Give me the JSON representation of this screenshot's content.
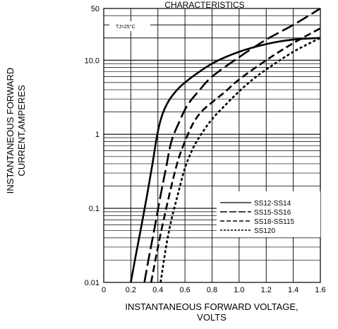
{
  "chart_data": {
    "type": "line",
    "title": "CHARACTERISTICS",
    "annotation": "TJ=25°C",
    "xlabel": "INSTANTANEOUS FORWARD VOLTAGE, VOLTS",
    "xlabel_lines": [
      "INSTANTANEOUS FORWARD VOLTAGE,",
      "VOLTS"
    ],
    "ylabel": "INSTANTANEOUS FORWARD CURRENT,AMPERES",
    "ylabel_lines": [
      "INSTANTANEOUS FORWARD",
      "CURRENT,AMPERES"
    ],
    "xlim": [
      0,
      1.6
    ],
    "ylim": [
      0.01,
      50
    ],
    "yscale": "log",
    "grid": true,
    "legend_position": "lower-right",
    "x_ticks": [
      "0",
      "0.2",
      "0.4",
      "0.6",
      "0.8",
      "1.0",
      "1.2",
      "1.4",
      "1.6"
    ],
    "x_tick_values": [
      0,
      0.2,
      0.4,
      0.6,
      0.8,
      1.0,
      1.2,
      1.4,
      1.6
    ],
    "y_ticks": [
      "0.01",
      "0.1",
      "1",
      "10.0",
      "50"
    ],
    "y_tick_values": [
      0.01,
      0.1,
      1,
      10,
      50
    ],
    "series": [
      {
        "name": "SS12-SS14",
        "dash": "solid",
        "x": [
          0.2,
          0.24,
          0.28,
          0.32,
          0.36,
          0.4,
          0.44,
          0.5,
          0.6,
          0.8,
          1.0,
          1.2,
          1.4,
          1.6
        ],
        "y": [
          0.01,
          0.025,
          0.06,
          0.15,
          0.4,
          1.1,
          2.0,
          3.2,
          5.0,
          9.0,
          13.0,
          16.5,
          19.0,
          20.0
        ]
      },
      {
        "name": "SS15-SS16",
        "dash": "long-dash",
        "x": [
          0.3,
          0.34,
          0.38,
          0.42,
          0.46,
          0.5,
          0.56,
          0.62,
          0.7,
          0.8,
          1.0,
          1.2,
          1.4,
          1.6
        ],
        "y": [
          0.01,
          0.025,
          0.06,
          0.15,
          0.35,
          0.8,
          1.5,
          2.5,
          3.8,
          6.0,
          11.0,
          19.0,
          30.0,
          50.0
        ]
      },
      {
        "name": "SS18-SS115",
        "dash": "medium-dash",
        "x": [
          0.35,
          0.4,
          0.45,
          0.5,
          0.55,
          0.6,
          0.66,
          0.72,
          0.8,
          0.9,
          1.0,
          1.2,
          1.4,
          1.6
        ],
        "y": [
          0.01,
          0.03,
          0.08,
          0.2,
          0.45,
          0.8,
          1.4,
          2.0,
          2.7,
          3.8,
          5.5,
          10.0,
          17.0,
          27.0
        ]
      },
      {
        "name": "SS120",
        "dash": "short-dash",
        "x": [
          0.42,
          0.46,
          0.5,
          0.55,
          0.6,
          0.66,
          0.72,
          0.8,
          0.9,
          1.0,
          1.1,
          1.2,
          1.4,
          1.6
        ],
        "y": [
          0.01,
          0.03,
          0.07,
          0.16,
          0.35,
          0.65,
          1.0,
          1.6,
          2.5,
          3.8,
          5.5,
          7.5,
          13.0,
          20.0
        ]
      }
    ]
  }
}
